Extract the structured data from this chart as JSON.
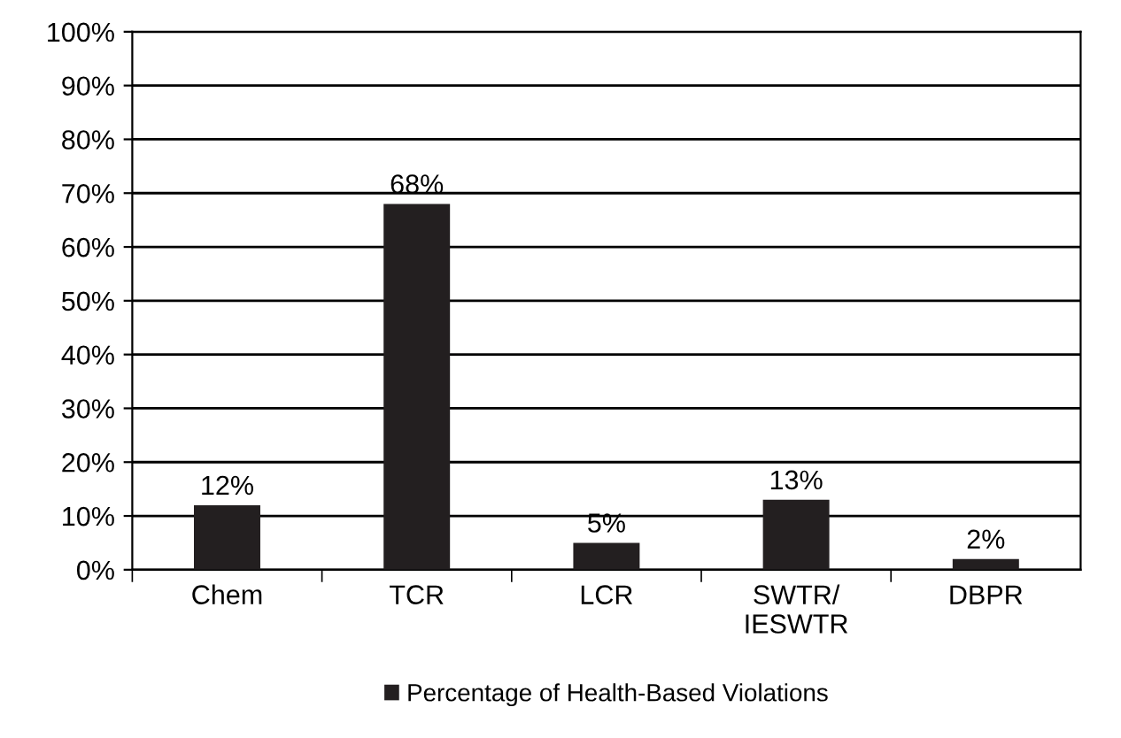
{
  "chart_data": {
    "type": "bar",
    "categories": [
      "Chem",
      "TCR",
      "LCR",
      "SWTR/\nIESWTR",
      "DBPR"
    ],
    "series": [
      {
        "name": "Percentage of Health-Based Violations",
        "color": "#231f20",
        "values": [
          12,
          68,
          5,
          13,
          2
        ],
        "value_labels": [
          "12%",
          "68%",
          "5%",
          "13%",
          "2%"
        ]
      }
    ],
    "ylim": [
      0,
      100
    ],
    "yticks": [
      {
        "value": 0,
        "label": "0%"
      },
      {
        "value": 10,
        "label": "10%"
      },
      {
        "value": 20,
        "label": "20%"
      },
      {
        "value": 30,
        "label": "30%"
      },
      {
        "value": 40,
        "label": "40%"
      },
      {
        "value": 50,
        "label": "50%"
      },
      {
        "value": 60,
        "label": "60%"
      },
      {
        "value": 70,
        "label": "70%"
      },
      {
        "value": 80,
        "label": "80%"
      },
      {
        "value": 90,
        "label": "90%"
      },
      {
        "value": 100,
        "label": "100%"
      }
    ],
    "grid": "y",
    "legend": "bottom"
  }
}
